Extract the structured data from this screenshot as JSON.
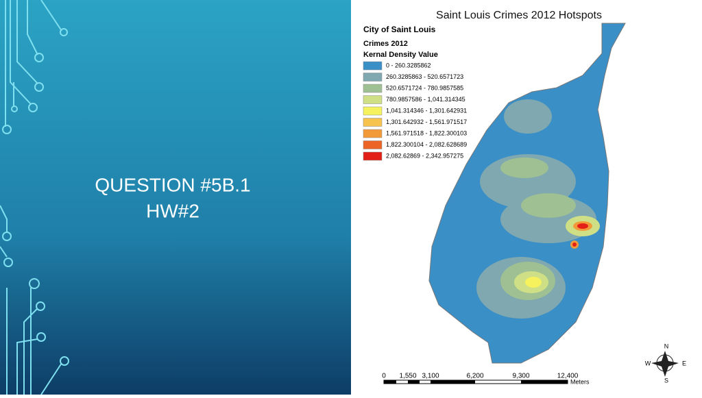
{
  "slide": {
    "title": "QUESTION #5B.1",
    "subtitle": "HW#2"
  },
  "map": {
    "title": "Saint Louis Crimes 2012 Hotspots",
    "legend": {
      "heading": "City of Saint Louis",
      "layer": "Crimes 2012",
      "field": "Kernal Density Value",
      "items": [
        {
          "label": "0 - 260.3285862",
          "color": "#3a8fc7"
        },
        {
          "label": "260.3285863 - 520.6571723",
          "color": "#7fa8b0"
        },
        {
          "label": "520.6571724 - 780.9857585",
          "color": "#9fc093"
        },
        {
          "label": "780.9857586 - 1,041.314345",
          "color": "#cfdf86"
        },
        {
          "label": "1,041.314346 - 1,301.642931",
          "color": "#f6f25e"
        },
        {
          "label": "1,301.642932 - 1,561.971517",
          "color": "#f6c34e"
        },
        {
          "label": "1,561.971518 - 1,822.300103",
          "color": "#f29a3a"
        },
        {
          "label": "1,822.300104 - 2,082.628689",
          "color": "#ec6526"
        },
        {
          "label": "2,082.62869 - 2,342.957275",
          "color": "#e32018"
        }
      ]
    },
    "scale_bar": {
      "labels": [
        "0",
        "1,550",
        "3,100",
        "6,200",
        "9,300",
        "12,400"
      ],
      "unit": "Meters"
    },
    "compass": {
      "n": "N",
      "s": "S",
      "e": "E",
      "w": "W"
    }
  }
}
